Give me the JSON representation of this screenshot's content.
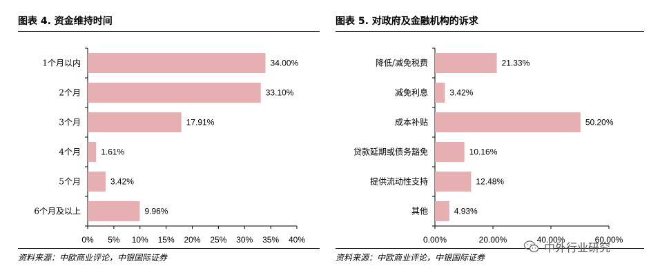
{
  "charts": [
    {
      "title": "图表 4. 资金维持时间",
      "source": "资料来源：中欧商业评论，中银国际证券",
      "chart_data": {
        "type": "bar",
        "orientation": "horizontal",
        "categories": [
          "1个月以内",
          "2个月",
          "3个月",
          "4个月",
          "5个月",
          "6个月及以上"
        ],
        "values": [
          34.0,
          33.1,
          17.91,
          1.61,
          3.42,
          9.96
        ],
        "value_labels": [
          "34.00%",
          "33.10%",
          "17.91%",
          "1.61%",
          "3.42%",
          "9.96%"
        ],
        "xlim": [
          0,
          40
        ],
        "ticks": [
          0,
          5,
          10,
          15,
          20,
          25,
          30,
          35,
          40
        ],
        "tick_labels": [
          "0%",
          "5%",
          "10%",
          "15%",
          "20%",
          "25%",
          "30%",
          "35%",
          "40%"
        ],
        "grid": false,
        "bar_color": "#e6b0b2"
      }
    },
    {
      "title": "图表 5. 对政府及金融机构的诉求",
      "source": "资料来源：中欧商业评论，中银国际证券",
      "chart_data": {
        "type": "bar",
        "orientation": "horizontal",
        "categories": [
          "降低/减免税费",
          "减免利息",
          "成本补贴",
          "贷款延期或债务豁免",
          "提供流动性支持",
          "其他"
        ],
        "values": [
          21.33,
          3.42,
          50.2,
          10.16,
          12.48,
          4.93
        ],
        "value_labels": [
          "21.33%",
          "3.42%",
          "50.20%",
          "10.16%",
          "12.48%",
          "4.93%"
        ],
        "xlim": [
          0,
          60
        ],
        "ticks": [
          0,
          20,
          40,
          60
        ],
        "tick_labels": [
          "0.00%",
          "20.00%",
          "40.00%",
          "60.00%"
        ],
        "grid": false,
        "bar_color": "#e6b0b2"
      }
    }
  ],
  "watermark": {
    "text": "中外行业研究",
    "icon": "wechat-icon"
  }
}
